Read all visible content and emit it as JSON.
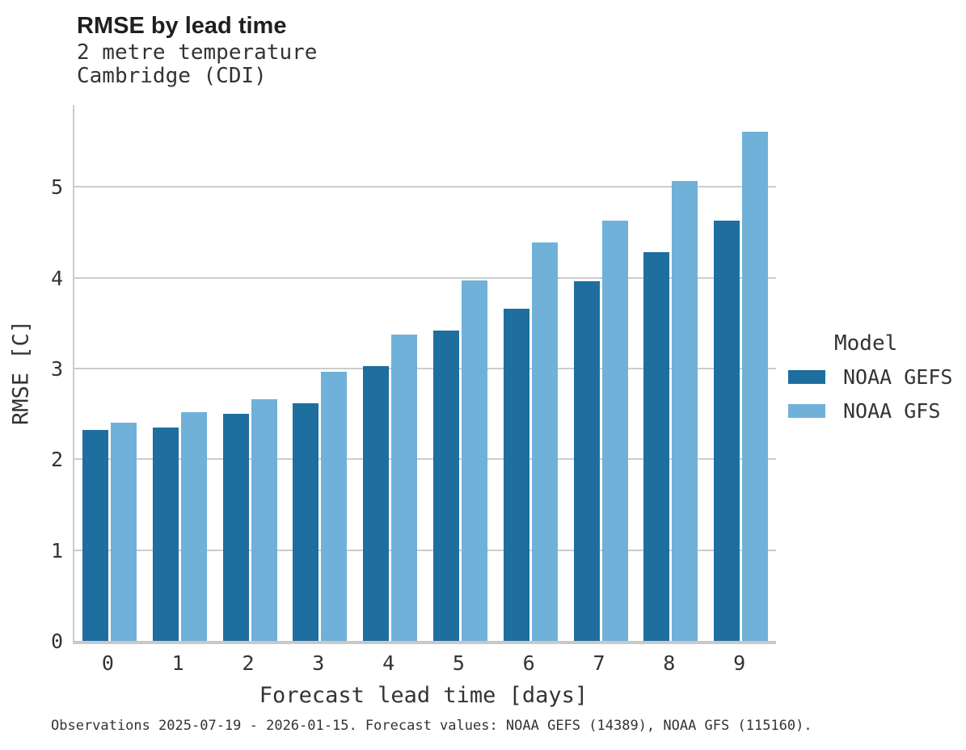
{
  "header": {
    "title": "RMSE by lead time",
    "subtitle_line1": "2 metre temperature",
    "subtitle_line2": "Cambridge (CDI)"
  },
  "chart_data": {
    "type": "bar",
    "title": "RMSE by lead time",
    "subtitle": [
      "2 metre temperature",
      "Cambridge (CDI)"
    ],
    "xlabel": "Forecast lead time [days]",
    "ylabel": "RMSE [C]",
    "categories": [
      "0",
      "1",
      "2",
      "3",
      "4",
      "5",
      "6",
      "7",
      "8",
      "9"
    ],
    "series": [
      {
        "name": "NOAA GEFS",
        "color": "#1e6e9f",
        "values": [
          2.32,
          2.35,
          2.5,
          2.62,
          3.03,
          3.42,
          3.66,
          3.96,
          4.28,
          4.63
        ]
      },
      {
        "name": "NOAA GFS",
        "color": "#6fb1d8",
        "values": [
          2.4,
          2.52,
          2.66,
          2.96,
          3.37,
          3.97,
          4.39,
          4.63,
          5.06,
          5.61
        ]
      }
    ],
    "ylim": [
      0,
      5.9
    ],
    "yticks": [
      0,
      1,
      2,
      3,
      4,
      5
    ],
    "grid": true,
    "legend_title": "Model",
    "legend_position": "right"
  },
  "colors": {
    "grid": "#cccccc",
    "axis": "#c8c8c8",
    "text": "#333333",
    "title": "#1f1f1f"
  },
  "footer": {
    "caption": "Observations 2025-07-19 - 2026-01-15. Forecast values: NOAA GEFS (14389), NOAA GFS (115160)."
  }
}
